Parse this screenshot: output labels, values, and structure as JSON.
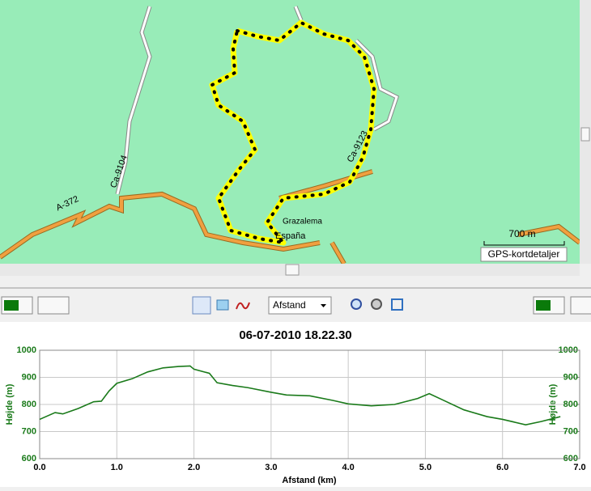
{
  "map": {
    "labels": [
      "A-372",
      "Ca-9104",
      "Ca-9123",
      "Grazalema",
      "España"
    ],
    "scale": "700 m",
    "detail_button": "GPS-kortdetaljer"
  },
  "toolbar": {
    "dropdown": "Afstand"
  },
  "chart_data": {
    "type": "line",
    "title": "06-07-2010 18.22.30",
    "xlabel": "Afstand (km)",
    "ylabel": "Højde (m)",
    "y2label": "Højde (m)",
    "x": [
      0,
      0.2,
      0.3,
      0.5,
      0.7,
      0.8,
      0.9,
      1.0,
      1.2,
      1.4,
      1.6,
      1.8,
      1.95,
      2.0,
      2.2,
      2.3,
      2.5,
      2.7,
      3.0,
      3.2,
      3.5,
      3.8,
      4.0,
      4.3,
      4.6,
      4.9,
      5.05,
      5.2,
      5.5,
      5.8,
      6.0,
      6.3,
      6.5,
      6.75
    ],
    "series": [
      {
        "color": "#1a7a1a",
        "values": [
          745,
          770,
          765,
          785,
          810,
          812,
          850,
          878,
          895,
          920,
          935,
          940,
          942,
          930,
          915,
          880,
          870,
          862,
          845,
          835,
          832,
          815,
          802,
          795,
          800,
          822,
          840,
          820,
          780,
          755,
          745,
          725,
          737,
          755
        ]
      }
    ],
    "xlim": [
      0,
      7
    ],
    "xticks": [
      {
        "value": 0,
        "label": "0.0"
      },
      {
        "value": 1,
        "label": "1.0"
      },
      {
        "value": 2,
        "label": "2.0"
      },
      {
        "value": 3,
        "label": "3.0"
      },
      {
        "value": 4,
        "label": "4.0"
      },
      {
        "value": 5,
        "label": "5.0"
      },
      {
        "value": 6,
        "label": "6.0"
      },
      {
        "value": 7,
        "label": "7.0"
      }
    ],
    "ylim": [
      600,
      1000
    ],
    "yticks": [
      600,
      700,
      800,
      900,
      1000
    ],
    "y2lim": [
      600,
      1000
    ],
    "y2ticks": [
      600,
      700,
      800,
      900,
      1000
    ],
    "grid": true
  }
}
